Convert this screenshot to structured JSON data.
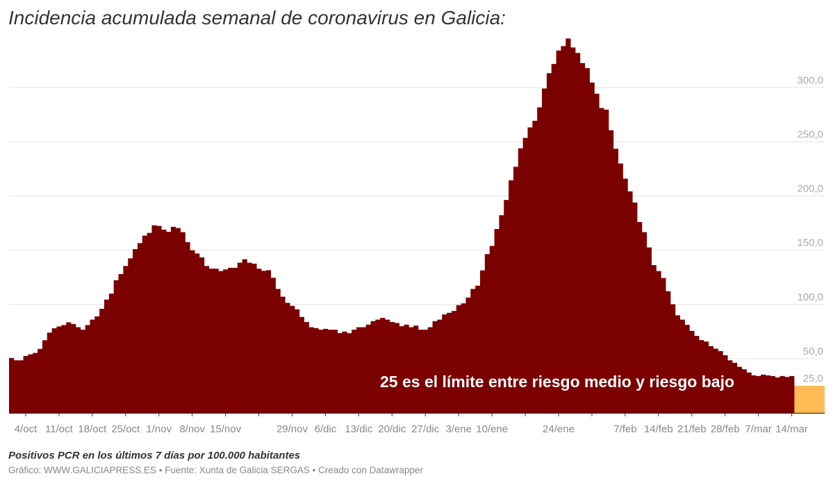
{
  "title": "Incidencia acumulada semanal de coronavirus en Galicia:",
  "note": "Positivos PCR en los últimos 7 días por 100.000 habitantes",
  "credit": "Gráfico: WWW.GALICIAPRESS.ES • Fuente: Xunta de Galicia SERGAS • Creado con Datawrapper",
  "chart_data": {
    "type": "area",
    "title": "Incidencia acumulada semanal de coronavirus en Galicia:",
    "xlabel": "",
    "ylabel": "",
    "ylim": [
      0,
      350
    ],
    "grid": true,
    "y_ticks": [
      {
        "value": 300,
        "label": "300,0"
      },
      {
        "value": 250,
        "label": "250,0"
      },
      {
        "value": 200,
        "label": "200,0"
      },
      {
        "value": 150,
        "label": "150,0"
      },
      {
        "value": 100,
        "label": "100,0"
      },
      {
        "value": 50,
        "label": "50,0"
      },
      {
        "value": 25,
        "label": "25,0"
      }
    ],
    "x_tick_labels": [
      "4/oct",
      "11/oct",
      "18/oct",
      "25/oct",
      "1/nov",
      "8/nov",
      "15/nov",
      "",
      "29/nov",
      "6/dic",
      "13/dic",
      "20/dic",
      "27/dic",
      "3/ene",
      "10/ene",
      "",
      "24/ene",
      "",
      "7/feb",
      "14/feb",
      "21/feb",
      "28/feb",
      "7/mar",
      "14/mar"
    ],
    "values": [
      50.6,
      48.5,
      48.5,
      52.5,
      54,
      55.3,
      59,
      67,
      74,
      78,
      79.7,
      81,
      83.5,
      82,
      79,
      76.7,
      81,
      86,
      89,
      96,
      104.5,
      110,
      122.4,
      128,
      135.5,
      142.5,
      151,
      156.6,
      163.5,
      166,
      173,
      172.4,
      169,
      167,
      171.6,
      170.5,
      166.7,
      157.5,
      150,
      147,
      143.4,
      135.5,
      133,
      133,
      130.8,
      132.3,
      133.8,
      133.8,
      138.5,
      141.7,
      138.5,
      137.6,
      133,
      131,
      131.6,
      124.6,
      114.3,
      107.2,
      101.5,
      98.7,
      95.5,
      88.5,
      83.8,
      79,
      78.2,
      76.7,
      77.5,
      76.7,
      76.7,
      73.5,
      75,
      73.5,
      76.7,
      79,
      79,
      81.4,
      84.6,
      86,
      87.6,
      86,
      83.8,
      82.9,
      79.9,
      81.4,
      79,
      80.5,
      76.7,
      76.7,
      79,
      84.6,
      86,
      90.8,
      92.3,
      94,
      99.4,
      101,
      106.4,
      114.3,
      117.3,
      131.4,
      146.4,
      154,
      169.6,
      182.3,
      196.4,
      214.5,
      227,
      244,
      253.6,
      263.3,
      269.4,
      281.8,
      299.2,
      313.3,
      321.8,
      334.2,
      338.3,
      345.3,
      337,
      332,
      322.6,
      318,
      304.7,
      294.4,
      281.2,
      279.7,
      260.7,
      243.6,
      230,
      216,
      204.3,
      194,
      176,
      166.7,
      152.6,
      136.3,
      130.8,
      124.4,
      112.2,
      100.2,
      90,
      86,
      81.2,
      75.6,
      71,
      67.1,
      65.8,
      61.5,
      59.2,
      57,
      53.2,
      48.5,
      46.2,
      42.5,
      40.2,
      37.2,
      34.6,
      34,
      35.3,
      34.6,
      34,
      32.7,
      34,
      33.1,
      34
    ],
    "threshold": {
      "value": 25,
      "label": "25 es el límite entre riesgo medio y riesgo bajo"
    },
    "colors": {
      "series": "#7b0000",
      "threshold": "#ffbb55",
      "grid": "#e4e4e4"
    }
  }
}
